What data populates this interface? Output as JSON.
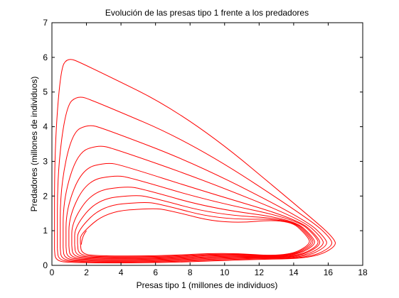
{
  "chart_data": {
    "type": "line",
    "title": "Evolución de las presas tipo 1 frente a los predadores",
    "xlabel": "Presas tipo 1 (millones de individuos)",
    "ylabel": "Predadores (millones de individuos)",
    "xlim": [
      0,
      18
    ],
    "ylim": [
      0,
      7
    ],
    "xticks": [
      "0",
      "2",
      "4",
      "6",
      "8",
      "10",
      "12",
      "14",
      "16",
      "18"
    ],
    "yticks": [
      "0",
      "1",
      "2",
      "3",
      "4",
      "5",
      "6",
      "7"
    ],
    "grid": false,
    "legend": "none",
    "series": [
      {
        "color": "#ff0000",
        "description": "predator-prey phase trajectory spiralling inward",
        "loops": [
          {
            "xmax": 16.5,
            "ymax": 6.0,
            "x_at_ymax": 0.9
          },
          {
            "xmax": 16.3,
            "ymax": 4.9,
            "x_at_ymax": 1.5
          },
          {
            "xmax": 16.0,
            "ymax": 4.07,
            "x_at_ymax": 2.1
          },
          {
            "xmax": 15.8,
            "ymax": 3.47,
            "x_at_ymax": 2.7
          },
          {
            "xmax": 15.6,
            "ymax": 2.97,
            "x_at_ymax": 3.2
          },
          {
            "xmax": 15.5,
            "ymax": 2.6,
            "x_at_ymax": 3.7
          },
          {
            "xmax": 15.3,
            "ymax": 2.28,
            "x_at_ymax": 4.3
          },
          {
            "xmax": 15.2,
            "ymax": 2.03,
            "x_at_ymax": 4.8
          },
          {
            "xmax": 15.1,
            "ymax": 1.83,
            "x_at_ymax": 5.3
          },
          {
            "xmax": 15.0,
            "ymax": 1.65,
            "x_at_ymax": 5.8
          }
        ],
        "start": {
          "x": 2.0,
          "y": 1.0
        }
      }
    ]
  }
}
